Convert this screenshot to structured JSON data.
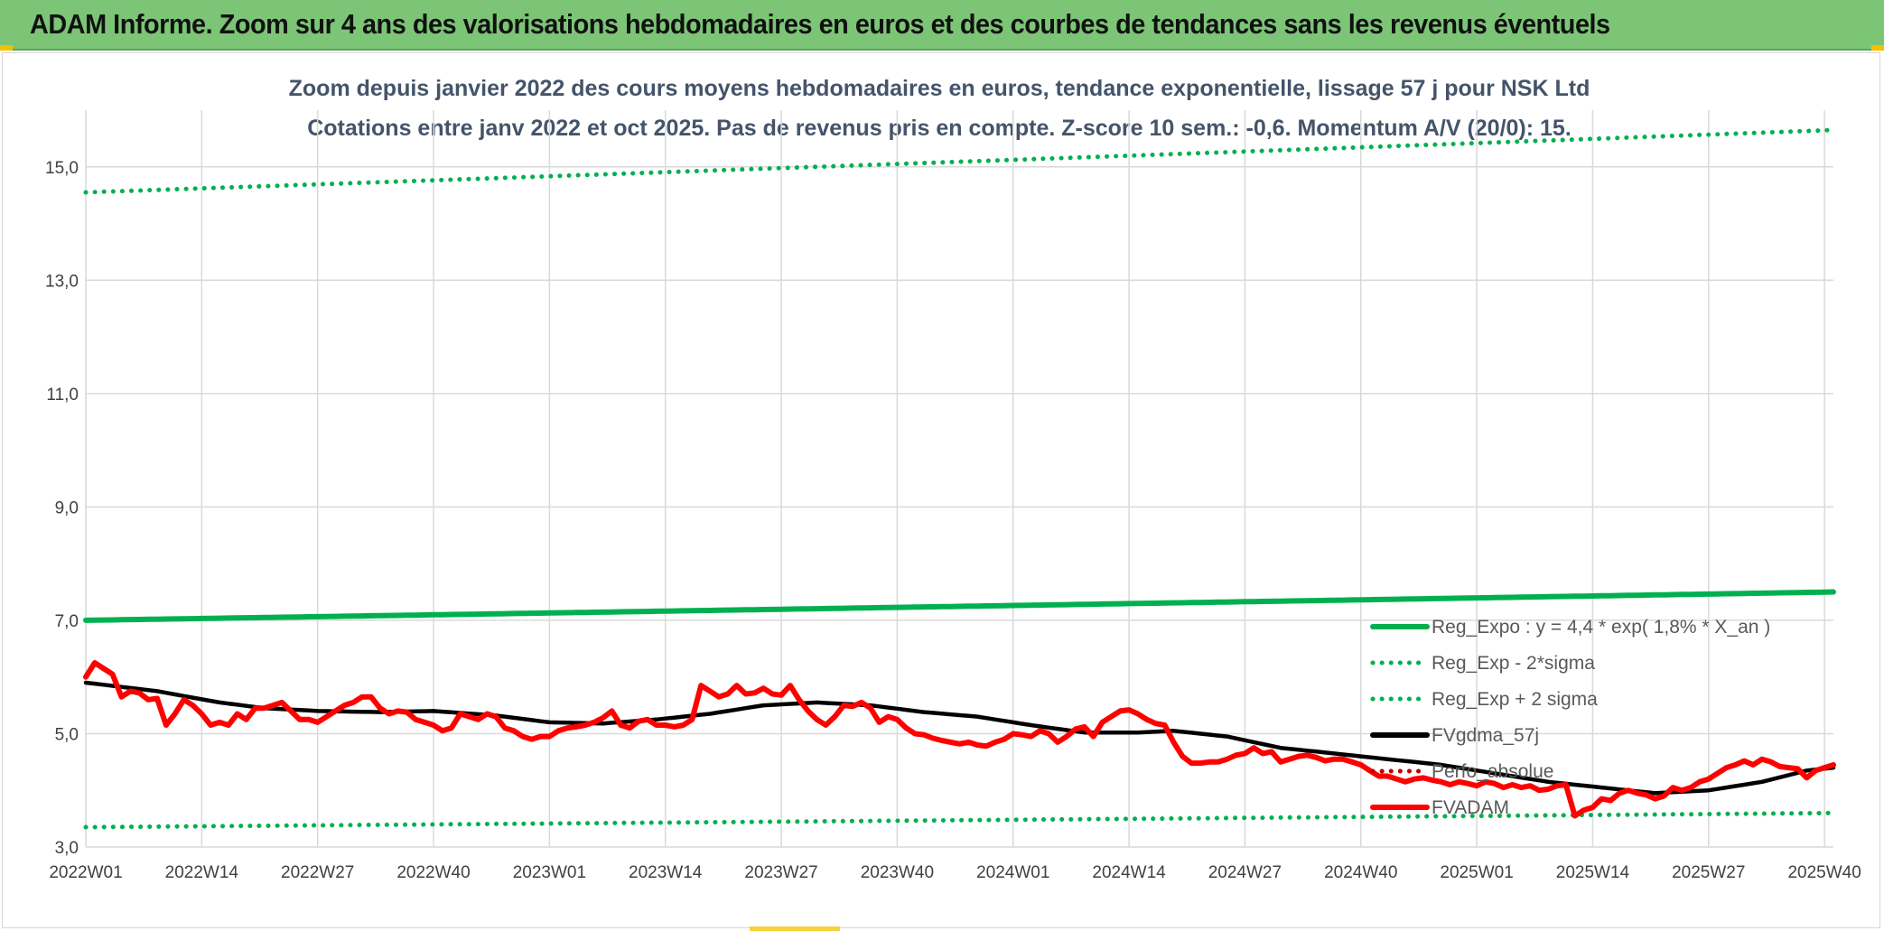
{
  "header": {
    "title": "ADAM Informe. Zoom sur 4 ans des valorisations hebdomadaires en euros et des courbes de tendances sans les revenus éventuels"
  },
  "chart_data": {
    "type": "line",
    "title_line1": "Zoom depuis janvier 2022 des cours moyens hebdomadaires en euros, tendance exponentielle, lissage 57 j pour NSK Ltd",
    "title_line2": "Cotations entre janv 2022 et oct 2025. Pas de revenus pris en compte. Z-score 10 sem.: -0,6. Momentum A/V (20/0): 15.",
    "x_tick_labels": [
      "2022W01",
      "2022W14",
      "2022W27",
      "2022W40",
      "2023W01",
      "2023W14",
      "2023W27",
      "2023W40",
      "2024W01",
      "2024W14",
      "2024W27",
      "2024W40",
      "2025W01",
      "2025W14",
      "2025W27",
      "2025W40"
    ],
    "y_tick_labels": [
      "3,0",
      "5,0",
      "7,0",
      "9,0",
      "11,0",
      "13,0",
      "15,0"
    ],
    "y_ticks": [
      3,
      5,
      7,
      9,
      11,
      13,
      15
    ],
    "ylim": [
      3,
      16
    ],
    "n_weeks": 197,
    "grid": true,
    "legend_position": "bottom-right",
    "series": [
      {
        "name": "Reg_Expo : y = 4,4 * exp( 1,8% *  X_an )",
        "color": "#00b050",
        "style": "solid",
        "start": 7.0,
        "end": 7.5
      },
      {
        "name": "Reg_Exp - 2*sigma",
        "color": "#00b050",
        "style": "dotted",
        "start": 3.35,
        "end": 3.6
      },
      {
        "name": "Reg_Exp + 2 sigma",
        "color": "#00b050",
        "style": "dotted",
        "start": 14.55,
        "end": 15.65
      },
      {
        "name": "FVgdma_57j",
        "color": "#000000",
        "style": "solid",
        "anchors": [
          [
            0,
            5.9
          ],
          [
            8,
            5.75
          ],
          [
            15,
            5.55
          ],
          [
            20,
            5.45
          ],
          [
            26,
            5.4
          ],
          [
            33,
            5.38
          ],
          [
            39,
            5.4
          ],
          [
            46,
            5.32
          ],
          [
            52,
            5.2
          ],
          [
            58,
            5.18
          ],
          [
            64,
            5.25
          ],
          [
            70,
            5.35
          ],
          [
            76,
            5.5
          ],
          [
            82,
            5.55
          ],
          [
            88,
            5.5
          ],
          [
            94,
            5.38
          ],
          [
            100,
            5.3
          ],
          [
            106,
            5.15
          ],
          [
            112,
            5.02
          ],
          [
            118,
            5.02
          ],
          [
            122,
            5.05
          ],
          [
            128,
            4.95
          ],
          [
            134,
            4.75
          ],
          [
            140,
            4.65
          ],
          [
            146,
            4.55
          ],
          [
            152,
            4.45
          ],
          [
            158,
            4.3
          ],
          [
            164,
            4.15
          ],
          [
            170,
            4.05
          ],
          [
            176,
            3.95
          ],
          [
            182,
            4.0
          ],
          [
            188,
            4.15
          ],
          [
            193,
            4.35
          ],
          [
            196,
            4.4
          ]
        ]
      },
      {
        "name": "Perfo_absolue",
        "color": "#c00000",
        "style": "dotted"
      },
      {
        "name": "FVADAM",
        "color": "#ff0000",
        "style": "solid",
        "anchors": [
          [
            0,
            6.0
          ],
          [
            1,
            6.25
          ],
          [
            2,
            6.15
          ],
          [
            3,
            6.05
          ],
          [
            4,
            5.65
          ],
          [
            5,
            5.75
          ],
          [
            6,
            5.72
          ],
          [
            7,
            5.6
          ],
          [
            8,
            5.62
          ],
          [
            9,
            5.15
          ],
          [
            10,
            5.35
          ],
          [
            11,
            5.6
          ],
          [
            12,
            5.5
          ],
          [
            13,
            5.35
          ],
          [
            14,
            5.15
          ],
          [
            15,
            5.2
          ],
          [
            16,
            5.15
          ],
          [
            17,
            5.35
          ],
          [
            18,
            5.25
          ],
          [
            19,
            5.45
          ],
          [
            20,
            5.45
          ],
          [
            21,
            5.5
          ],
          [
            22,
            5.55
          ],
          [
            23,
            5.4
          ],
          [
            24,
            5.25
          ],
          [
            25,
            5.25
          ],
          [
            26,
            5.2
          ],
          [
            27,
            5.3
          ],
          [
            28,
            5.4
          ],
          [
            29,
            5.5
          ],
          [
            30,
            5.55
          ],
          [
            31,
            5.65
          ],
          [
            32,
            5.65
          ],
          [
            33,
            5.45
          ],
          [
            34,
            5.35
          ],
          [
            35,
            5.4
          ],
          [
            36,
            5.38
          ],
          [
            37,
            5.25
          ],
          [
            38,
            5.2
          ],
          [
            39,
            5.15
          ],
          [
            40,
            5.05
          ],
          [
            41,
            5.1
          ],
          [
            42,
            5.35
          ],
          [
            43,
            5.3
          ],
          [
            44,
            5.25
          ],
          [
            45,
            5.35
          ],
          [
            46,
            5.3
          ],
          [
            47,
            5.1
          ],
          [
            48,
            5.05
          ],
          [
            49,
            4.95
          ],
          [
            50,
            4.9
          ],
          [
            51,
            4.95
          ],
          [
            52,
            4.95
          ],
          [
            53,
            5.05
          ],
          [
            54,
            5.1
          ],
          [
            55,
            5.12
          ],
          [
            56,
            5.15
          ],
          [
            57,
            5.2
          ],
          [
            58,
            5.28
          ],
          [
            59,
            5.4
          ],
          [
            60,
            5.15
          ],
          [
            61,
            5.1
          ],
          [
            62,
            5.22
          ],
          [
            63,
            5.25
          ],
          [
            64,
            5.15
          ],
          [
            65,
            5.15
          ],
          [
            66,
            5.12
          ],
          [
            67,
            5.15
          ],
          [
            68,
            5.25
          ],
          [
            69,
            5.85
          ],
          [
            70,
            5.75
          ],
          [
            71,
            5.65
          ],
          [
            72,
            5.7
          ],
          [
            73,
            5.85
          ],
          [
            74,
            5.7
          ],
          [
            75,
            5.72
          ],
          [
            76,
            5.8
          ],
          [
            77,
            5.7
          ],
          [
            78,
            5.68
          ],
          [
            79,
            5.85
          ],
          [
            80,
            5.6
          ],
          [
            81,
            5.4
          ],
          [
            82,
            5.25
          ],
          [
            83,
            5.15
          ],
          [
            84,
            5.3
          ],
          [
            85,
            5.5
          ],
          [
            86,
            5.48
          ],
          [
            87,
            5.55
          ],
          [
            88,
            5.45
          ],
          [
            89,
            5.2
          ],
          [
            90,
            5.3
          ],
          [
            91,
            5.25
          ],
          [
            92,
            5.1
          ],
          [
            93,
            5.0
          ],
          [
            94,
            4.98
          ],
          [
            95,
            4.92
          ],
          [
            96,
            4.88
          ],
          [
            97,
            4.85
          ],
          [
            98,
            4.82
          ],
          [
            99,
            4.85
          ],
          [
            100,
            4.8
          ],
          [
            101,
            4.78
          ],
          [
            102,
            4.85
          ],
          [
            103,
            4.9
          ],
          [
            104,
            5.0
          ],
          [
            105,
            4.98
          ],
          [
            106,
            4.95
          ],
          [
            107,
            5.05
          ],
          [
            108,
            5.0
          ],
          [
            109,
            4.85
          ],
          [
            110,
            4.95
          ],
          [
            111,
            5.08
          ],
          [
            112,
            5.12
          ],
          [
            113,
            4.95
          ],
          [
            114,
            5.2
          ],
          [
            115,
            5.3
          ],
          [
            116,
            5.4
          ],
          [
            117,
            5.42
          ],
          [
            118,
            5.35
          ],
          [
            119,
            5.25
          ],
          [
            120,
            5.18
          ],
          [
            121,
            5.15
          ],
          [
            122,
            4.85
          ],
          [
            123,
            4.6
          ],
          [
            124,
            4.48
          ],
          [
            125,
            4.48
          ],
          [
            126,
            4.5
          ],
          [
            127,
            4.5
          ],
          [
            128,
            4.55
          ],
          [
            129,
            4.62
          ],
          [
            130,
            4.65
          ],
          [
            131,
            4.75
          ],
          [
            132,
            4.65
          ],
          [
            133,
            4.68
          ],
          [
            134,
            4.5
          ],
          [
            135,
            4.55
          ],
          [
            136,
            4.6
          ],
          [
            137,
            4.62
          ],
          [
            138,
            4.58
          ],
          [
            139,
            4.52
          ],
          [
            140,
            4.55
          ],
          [
            141,
            4.55
          ],
          [
            142,
            4.5
          ],
          [
            143,
            4.45
          ],
          [
            144,
            4.35
          ],
          [
            145,
            4.25
          ],
          [
            146,
            4.25
          ],
          [
            147,
            4.2
          ],
          [
            148,
            4.15
          ],
          [
            149,
            4.2
          ],
          [
            150,
            4.22
          ],
          [
            151,
            4.18
          ],
          [
            152,
            4.15
          ],
          [
            153,
            4.1
          ],
          [
            154,
            4.15
          ],
          [
            155,
            4.12
          ],
          [
            156,
            4.08
          ],
          [
            157,
            4.15
          ],
          [
            158,
            4.12
          ],
          [
            159,
            4.05
          ],
          [
            160,
            4.1
          ],
          [
            161,
            4.05
          ],
          [
            162,
            4.08
          ],
          [
            163,
            4.0
          ],
          [
            164,
            4.02
          ],
          [
            165,
            4.08
          ],
          [
            166,
            4.1
          ],
          [
            167,
            3.55
          ],
          [
            168,
            3.65
          ],
          [
            169,
            3.7
          ],
          [
            170,
            3.85
          ],
          [
            171,
            3.82
          ],
          [
            172,
            3.95
          ],
          [
            173,
            4.0
          ],
          [
            174,
            3.95
          ],
          [
            175,
            3.92
          ],
          [
            176,
            3.85
          ],
          [
            177,
            3.9
          ],
          [
            178,
            4.05
          ],
          [
            179,
            4.0
          ],
          [
            180,
            4.05
          ],
          [
            181,
            4.15
          ],
          [
            182,
            4.2
          ],
          [
            183,
            4.3
          ],
          [
            184,
            4.4
          ],
          [
            185,
            4.45
          ],
          [
            186,
            4.52
          ],
          [
            187,
            4.45
          ],
          [
            188,
            4.55
          ],
          [
            189,
            4.5
          ],
          [
            190,
            4.42
          ],
          [
            191,
            4.4
          ],
          [
            192,
            4.38
          ],
          [
            193,
            4.22
          ],
          [
            194,
            4.35
          ],
          [
            195,
            4.4
          ],
          [
            196,
            4.45
          ]
        ]
      }
    ]
  }
}
